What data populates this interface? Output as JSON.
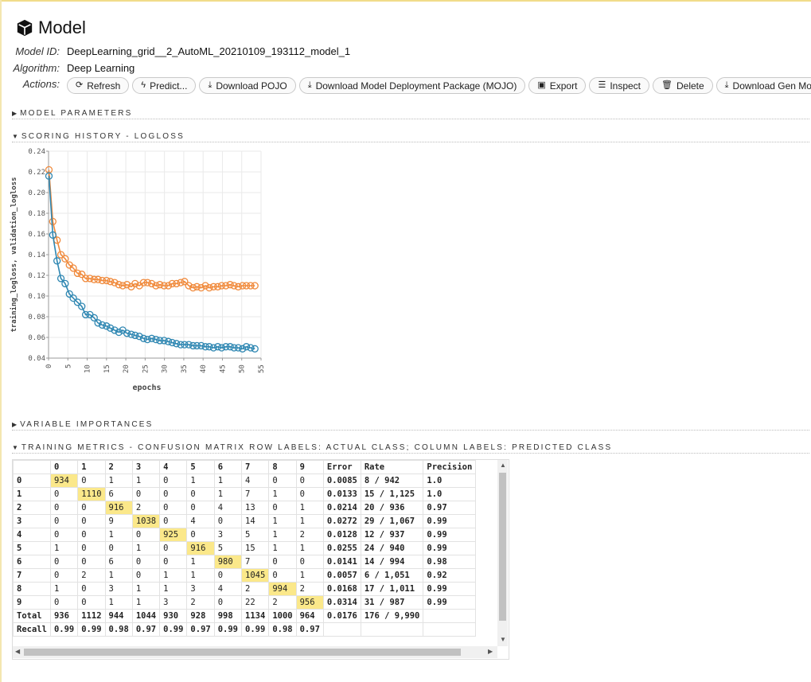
{
  "page": {
    "title": "Model",
    "model_id_label": "Model ID:",
    "model_id": "DeepLearning_grid__2_AutoML_20210109_193112_model_1",
    "algorithm_label": "Algorithm:",
    "algorithm": "Deep Learning",
    "actions_label": "Actions:"
  },
  "actions": [
    {
      "label": "Refresh",
      "icon": "refresh-icon"
    },
    {
      "label": "Predict...",
      "icon": "bolt-icon"
    },
    {
      "label": "Download POJO",
      "icon": "download-icon"
    },
    {
      "label": "Download Model Deployment Package (MOJO)",
      "icon": "download-icon"
    },
    {
      "label": "Export",
      "icon": "save-icon"
    },
    {
      "label": "Inspect",
      "icon": "list-icon"
    },
    {
      "label": "Delete",
      "icon": "trash-icon"
    },
    {
      "label": "Download Gen Model",
      "icon": "download-icon"
    }
  ],
  "sections": {
    "model_parameters": "MODEL PARAMETERS",
    "scoring_history": "SCORING HISTORY - LOGLOSS",
    "variable_importances": "VARIABLE IMPORTANCES",
    "training_metrics": "TRAINING METRICS - CONFUSION MATRIX ROW LABELS: ACTUAL CLASS; COLUMN LABELS: PREDICTED CLASS"
  },
  "chart_data": {
    "type": "line",
    "xlabel": "epochs",
    "ylabel": "training_logloss, validation_logloss",
    "xlim": [
      0,
      55
    ],
    "ylim": [
      0.04,
      0.24
    ],
    "xticks": [
      0,
      5,
      10,
      15,
      20,
      25,
      30,
      35,
      40,
      45,
      50,
      55
    ],
    "yticks": [
      0.04,
      0.06,
      0.08,
      0.1,
      0.12,
      0.14,
      0.16,
      0.18,
      0.2,
      0.22,
      0.24
    ],
    "series": [
      {
        "color": "#f08a3c",
        "x": [
          0.1,
          1.1,
          2.2,
          3.2,
          4.3,
          5.4,
          6.4,
          7.5,
          8.6,
          9.6,
          10.7,
          11.8,
          12.8,
          13.9,
          15,
          16,
          17.1,
          18.2,
          19.2,
          20.3,
          21.4,
          22.4,
          23.5,
          24.6,
          25.6,
          26.7,
          27.8,
          28.8,
          29.9,
          31,
          32,
          33.1,
          34.2,
          35.2,
          36.3,
          37.4,
          38.4,
          39.5,
          40.6,
          41.6,
          42.7,
          43.8,
          44.8,
          45.9,
          47,
          48,
          49.1,
          50.2,
          51.2,
          52.3,
          53.4
        ],
        "values": [
          0.222,
          0.172,
          0.154,
          0.14,
          0.136,
          0.13,
          0.127,
          0.122,
          0.121,
          0.117,
          0.117,
          0.116,
          0.116,
          0.115,
          0.115,
          0.114,
          0.113,
          0.111,
          0.11,
          0.111,
          0.109,
          0.112,
          0.11,
          0.113,
          0.113,
          0.112,
          0.11,
          0.111,
          0.11,
          0.11,
          0.112,
          0.112,
          0.113,
          0.114,
          0.11,
          0.108,
          0.109,
          0.108,
          0.11,
          0.108,
          0.109,
          0.109,
          0.11,
          0.11,
          0.111,
          0.11,
          0.109,
          0.11,
          0.11,
          0.11,
          0.11
        ]
      },
      {
        "color": "#2f87b2",
        "x": [
          0.1,
          1.1,
          2.2,
          3.2,
          4.3,
          5.4,
          6.4,
          7.5,
          8.6,
          9.6,
          10.7,
          11.8,
          12.8,
          13.9,
          15,
          16,
          17.1,
          18.2,
          19.2,
          20.3,
          21.4,
          22.4,
          23.5,
          24.6,
          25.6,
          26.7,
          27.8,
          28.8,
          29.9,
          31,
          32,
          33.1,
          34.2,
          35.2,
          36.3,
          37.4,
          38.4,
          39.5,
          40.6,
          41.6,
          42.7,
          43.8,
          44.8,
          45.9,
          47,
          48,
          49.1,
          50.2,
          51.2,
          52.3,
          53.4
        ],
        "values": [
          0.216,
          0.159,
          0.134,
          0.117,
          0.112,
          0.102,
          0.098,
          0.094,
          0.09,
          0.082,
          0.082,
          0.079,
          0.074,
          0.072,
          0.071,
          0.069,
          0.067,
          0.065,
          0.067,
          0.064,
          0.063,
          0.062,
          0.061,
          0.059,
          0.058,
          0.059,
          0.058,
          0.057,
          0.057,
          0.056,
          0.055,
          0.054,
          0.053,
          0.053,
          0.053,
          0.052,
          0.052,
          0.052,
          0.051,
          0.051,
          0.05,
          0.051,
          0.05,
          0.051,
          0.051,
          0.05,
          0.05,
          0.049,
          0.051,
          0.05,
          0.049
        ]
      }
    ]
  },
  "confusion_matrix": {
    "headers": [
      "",
      "0",
      "1",
      "2",
      "3",
      "4",
      "5",
      "6",
      "7",
      "8",
      "9",
      "Error",
      "Rate",
      "Precision"
    ],
    "rows": [
      {
        "label": "0",
        "cells": [
          "934",
          "0",
          "1",
          "1",
          "0",
          "1",
          "1",
          "4",
          "0",
          "0"
        ],
        "error": "0.0085",
        "rate": "8 / 942",
        "precision": "1.0"
      },
      {
        "label": "1",
        "cells": [
          "0",
          "1110",
          "6",
          "0",
          "0",
          "0",
          "1",
          "7",
          "1",
          "0"
        ],
        "error": "0.0133",
        "rate": "15 / 1,125",
        "precision": "1.0"
      },
      {
        "label": "2",
        "cells": [
          "0",
          "0",
          "916",
          "2",
          "0",
          "0",
          "4",
          "13",
          "0",
          "1"
        ],
        "error": "0.0214",
        "rate": "20 / 936",
        "precision": "0.97"
      },
      {
        "label": "3",
        "cells": [
          "0",
          "0",
          "9",
          "1038",
          "0",
          "4",
          "0",
          "14",
          "1",
          "1"
        ],
        "error": "0.0272",
        "rate": "29 / 1,067",
        "precision": "0.99"
      },
      {
        "label": "4",
        "cells": [
          "0",
          "0",
          "1",
          "0",
          "925",
          "0",
          "3",
          "5",
          "1",
          "2"
        ],
        "error": "0.0128",
        "rate": "12 / 937",
        "precision": "0.99"
      },
      {
        "label": "5",
        "cells": [
          "1",
          "0",
          "0",
          "1",
          "0",
          "916",
          "5",
          "15",
          "1",
          "1"
        ],
        "error": "0.0255",
        "rate": "24 / 940",
        "precision": "0.99"
      },
      {
        "label": "6",
        "cells": [
          "0",
          "0",
          "6",
          "0",
          "0",
          "1",
          "980",
          "7",
          "0",
          "0"
        ],
        "error": "0.0141",
        "rate": "14 / 994",
        "precision": "0.98"
      },
      {
        "label": "7",
        "cells": [
          "0",
          "2",
          "1",
          "0",
          "1",
          "1",
          "0",
          "1045",
          "0",
          "1"
        ],
        "error": "0.0057",
        "rate": "6 / 1,051",
        "precision": "0.92"
      },
      {
        "label": "8",
        "cells": [
          "1",
          "0",
          "3",
          "1",
          "1",
          "3",
          "4",
          "2",
          "994",
          "2"
        ],
        "error": "0.0168",
        "rate": "17 / 1,011",
        "precision": "0.99"
      },
      {
        "label": "9",
        "cells": [
          "0",
          "0",
          "1",
          "1",
          "3",
          "2",
          "0",
          "22",
          "2",
          "956"
        ],
        "error": "0.0314",
        "rate": "31 / 987",
        "precision": "0.99"
      }
    ],
    "total": {
      "label": "Total",
      "cells": [
        "936",
        "1112",
        "944",
        "1044",
        "930",
        "928",
        "998",
        "1134",
        "1000",
        "964"
      ],
      "error": "0.0176",
      "rate": "176 / 9,990",
      "precision": ""
    },
    "recall": {
      "label": "Recall",
      "cells": [
        "0.99",
        "0.99",
        "0.98",
        "0.97",
        "0.99",
        "0.97",
        "0.99",
        "0.99",
        "0.98",
        "0.97"
      ],
      "error": "",
      "rate": "",
      "precision": ""
    }
  }
}
